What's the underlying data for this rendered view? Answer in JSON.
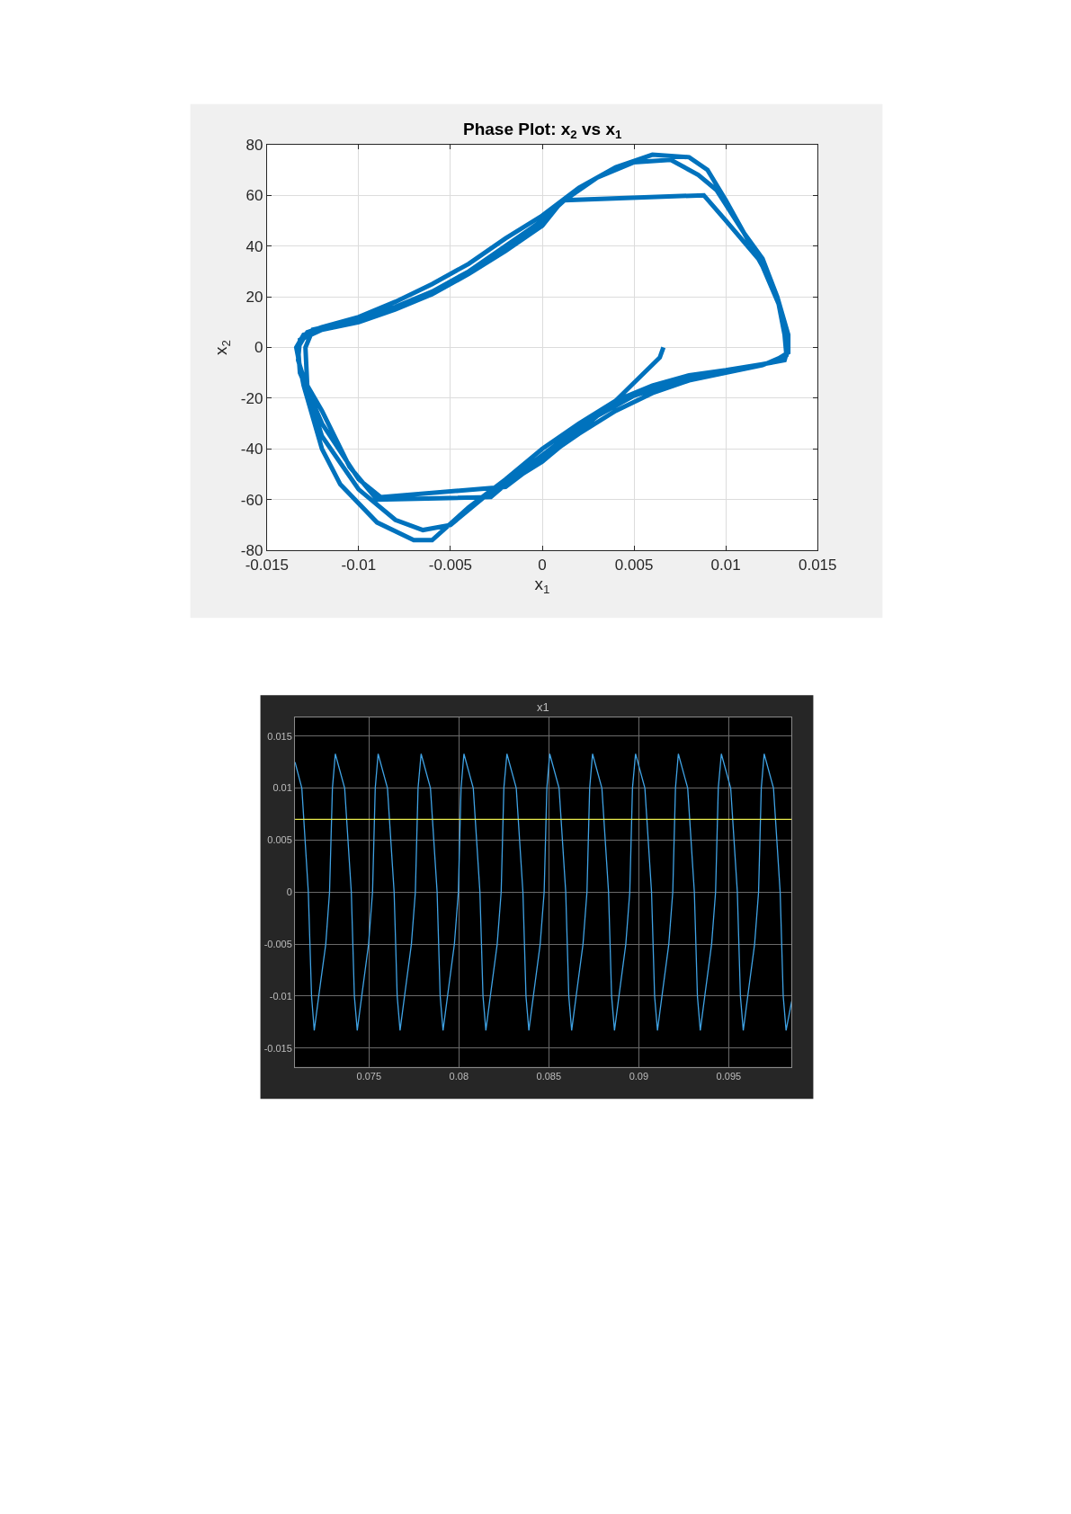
{
  "chart_data": [
    {
      "type": "line",
      "title": "Phase Plot: x$_{2}$ vs x$_{1}$",
      "xlabel": "x$_{1}$",
      "ylabel": "x$_{2}$",
      "xlim": [
        -0.015,
        0.015
      ],
      "xticks": [
        -0.015,
        -0.01,
        -0.005,
        0,
        0.005,
        0.01,
        0.015
      ],
      "ylim": [
        -80,
        80
      ],
      "yticks": [
        -80,
        -60,
        -40,
        -20,
        0,
        20,
        40,
        60,
        80
      ],
      "grid": true,
      "series": [
        {
          "color": "#0072bd",
          "x": [
            0.0066,
            0.0064,
            0.004,
            0.002,
            0,
            -0.002,
            -0.0028,
            -0.009,
            -0.0105,
            -0.012,
            -0.0128,
            -0.0129,
            -0.0125,
            -0.01,
            -0.008,
            -0.006,
            -0.004,
            -0.002,
            0,
            0.0012,
            0.0088,
            0.01,
            0.012,
            0.0128,
            0.0132,
            0.0133,
            0.012,
            0.01,
            0.008,
            0.006,
            0.004,
            0.002,
            0,
            -0.002,
            -0.0088,
            -0.01,
            -0.012,
            -0.0132,
            -0.0133,
            -0.0128,
            -0.012,
            -0.01,
            -0.008,
            -0.006,
            -0.004,
            -0.002,
            0,
            0.002,
            0.004,
            0.006,
            0.008,
            0.009,
            0.01,
            0.011,
            0.012,
            0.0128,
            0.0134,
            0.0134,
            0.0125,
            0.01,
            0.008,
            0.006,
            0.004,
            0.002,
            0,
            -0.002,
            -0.004,
            -0.006,
            -0.007,
            -0.009,
            -0.011,
            -0.012,
            -0.013,
            -0.0134,
            -0.013,
            -0.012,
            -0.01,
            -0.008,
            -0.006,
            -0.004,
            -0.002,
            0,
            0.001,
            0.003,
            0.005,
            0.007,
            0.0085,
            0.0095,
            0.011,
            0.012,
            0.013,
            0.0134,
            0.0132,
            0.011,
            0.008,
            0.005,
            0.003,
            0.001,
            -0.001,
            -0.003,
            -0.005,
            -0.0065,
            -0.008,
            -0.01,
            -0.012,
            -0.0133,
            -0.0132,
            -0.012
          ],
          "values": [
            0,
            -4,
            -21,
            -33,
            -45,
            -54,
            -59,
            -60,
            -47,
            -25,
            -15,
            0,
            7,
            11,
            16,
            22,
            30,
            40,
            50,
            58,
            60,
            50,
            33,
            20,
            5,
            -3,
            -7,
            -10,
            -13,
            -18,
            -25,
            -34,
            -44,
            -55,
            -59,
            -52,
            -30,
            -10,
            0,
            6,
            8,
            12,
            18,
            25,
            33,
            43,
            52,
            63,
            71,
            76,
            75,
            70,
            58,
            45,
            35,
            20,
            5,
            -2,
            -6,
            -9,
            -11,
            -15,
            -21,
            -30,
            -40,
            -52,
            -63,
            -76,
            -76,
            -69,
            -54,
            -40,
            -15,
            0,
            5,
            7,
            10,
            15,
            21,
            29,
            38,
            48,
            57,
            67,
            73,
            74,
            68,
            62,
            45,
            32,
            15,
            0,
            -5,
            -8,
            -12,
            -19,
            -27,
            -37,
            -48,
            -58,
            -70,
            -72,
            -68,
            -56,
            -35,
            -5,
            3,
            7
          ]
        }
      ]
    },
    {
      "type": "line",
      "title": "x1",
      "xlim": [
        0.07089,
        0.0985
      ],
      "xticks": [
        0.075,
        0.08,
        0.085,
        0.09,
        0.095
      ],
      "ylim": [
        -0.0168,
        0.0168
      ],
      "yticks": [
        -0.015,
        -0.01,
        -0.005,
        0,
        0.005,
        0.01,
        0.015
      ],
      "grid": true,
      "ref_lines": [
        {
          "axis": "y",
          "value": 0.007,
          "color": "#e8ea4c"
        }
      ],
      "series": [
        {
          "color": "#3fa2e4",
          "x": [
            0.07089,
            0.07127,
            0.07163,
            0.07181,
            0.07196,
            0.07221,
            0.0726,
            0.07281,
            0.07297,
            0.07313,
            0.07365,
            0.07402,
            0.07419,
            0.07435,
            0.0746,
            0.07498,
            0.0752,
            0.07535,
            0.07551,
            0.07603,
            0.0764,
            0.07657,
            0.07673,
            0.07698,
            0.07736,
            0.07758,
            0.07773,
            0.0779,
            0.07842,
            0.07879,
            0.07896,
            0.07912,
            0.07937,
            0.07975,
            0.07997,
            0.08012,
            0.08028,
            0.0808,
            0.08117,
            0.08134,
            0.0815,
            0.08175,
            0.08213,
            0.08235,
            0.0825,
            0.08267,
            0.08319,
            0.08356,
            0.08373,
            0.08389,
            0.08414,
            0.08452,
            0.08474,
            0.08489,
            0.08505,
            0.08557,
            0.08594,
            0.08611,
            0.08627,
            0.08652,
            0.0869,
            0.08712,
            0.08727,
            0.08743,
            0.08795,
            0.08832,
            0.08849,
            0.08865,
            0.0889,
            0.08928,
            0.0895,
            0.08965,
            0.08982,
            0.09034,
            0.09071,
            0.09088,
            0.09104,
            0.09129,
            0.09167,
            0.09189,
            0.09204,
            0.0922,
            0.09272,
            0.09309,
            0.09326,
            0.09342,
            0.09367,
            0.09405,
            0.09427,
            0.09442,
            0.09459,
            0.09511,
            0.09548,
            0.09565,
            0.09581,
            0.09606,
            0.09644,
            0.09666,
            0.09681,
            0.09697,
            0.09749,
            0.09786,
            0.09803,
            0.09819,
            0.0985
          ],
          "values": [
            0.0125,
            0.01,
            0,
            -0.01,
            -0.0133,
            -0.01,
            -0.005,
            0,
            0.01,
            0.0133,
            0.01,
            0,
            -0.01,
            -0.0133,
            -0.01,
            -0.005,
            0,
            0.01,
            0.0133,
            0.01,
            0,
            -0.01,
            -0.0133,
            -0.01,
            -0.005,
            0,
            0.01,
            0.0133,
            0.01,
            0,
            -0.01,
            -0.0133,
            -0.01,
            -0.005,
            0,
            0.01,
            0.0133,
            0.01,
            0,
            -0.01,
            -0.0133,
            -0.01,
            -0.005,
            0,
            0.01,
            0.0133,
            0.01,
            0,
            -0.01,
            -0.0133,
            -0.01,
            -0.005,
            0,
            0.01,
            0.0133,
            0.01,
            0,
            -0.01,
            -0.0133,
            -0.01,
            -0.005,
            0,
            0.01,
            0.0133,
            0.01,
            0,
            -0.01,
            -0.0133,
            -0.01,
            -0.005,
            0,
            0.01,
            0.0133,
            0.01,
            0,
            -0.01,
            -0.0133,
            -0.01,
            -0.005,
            0,
            0.01,
            0.0133,
            0.01,
            0,
            -0.01,
            -0.0133,
            -0.01,
            -0.005,
            0,
            0.01,
            0.0133,
            0.01,
            0,
            -0.01,
            -0.0133,
            -0.01,
            -0.005,
            0,
            0.01,
            0.0133,
            0.01,
            0,
            -0.01,
            -0.0133,
            -0.0105
          ]
        }
      ]
    }
  ]
}
